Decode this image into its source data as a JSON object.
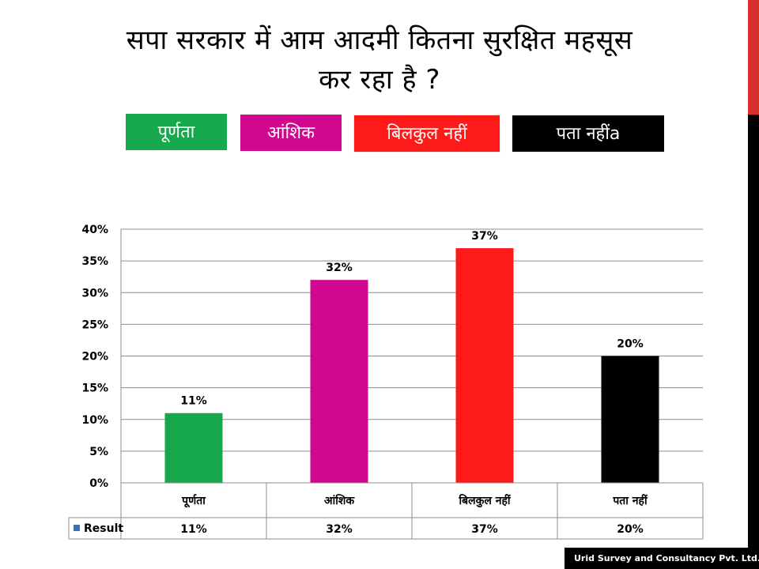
{
  "title_lines": [
    "सपा सरकार में आम आदमी कितना सुरक्षित महसूस",
    "कर रहा है ?"
  ],
  "legend": [
    {
      "label": "पूर्णता",
      "color": "#18a84c"
    },
    {
      "label": "आंशिक",
      "color": "#d1078f"
    },
    {
      "label": "बिलकुल नहीं",
      "color": "#ff1a1a"
    },
    {
      "label": "पता नहींa",
      "color": "#000000"
    }
  ],
  "chart_data": {
    "type": "bar",
    "categories": [
      "पूर्णता",
      "आंशिक",
      "बिलकुल नहीं",
      "पता नहीं"
    ],
    "series": [
      {
        "name": "Result",
        "values": [
          11,
          32,
          37,
          20
        ],
        "colors": [
          "#18a84c",
          "#d1078f",
          "#ff1a1a",
          "#000000"
        ],
        "series_color": "#3b6fb6"
      }
    ],
    "data_labels": [
      "11%",
      "32%",
      "37%",
      "20%"
    ],
    "ylim": [
      0,
      40
    ],
    "y_ticks": [
      0,
      5,
      10,
      15,
      20,
      25,
      30,
      35,
      40
    ],
    "y_tick_labels": [
      "0%",
      "5%",
      "10%",
      "15%",
      "20%",
      "25%",
      "30%",
      "35%",
      "40%"
    ],
    "data_table": true,
    "grid": true
  },
  "footer": "Urid Survey and Consultancy Pvt. Ltd."
}
